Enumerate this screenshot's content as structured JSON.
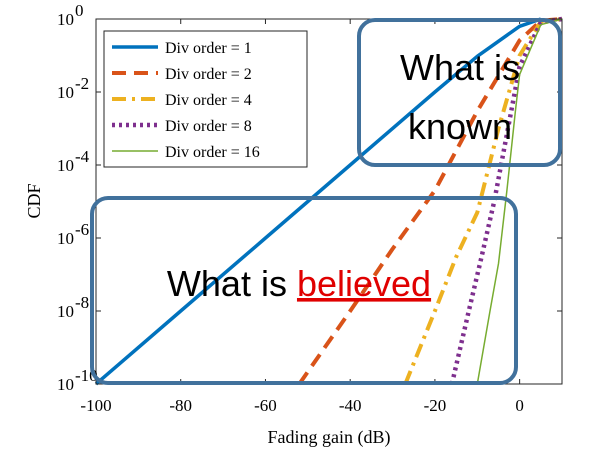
{
  "chart_data": {
    "type": "line",
    "xlabel": "Fading gain (dB)",
    "ylabel": "CDF",
    "xlim": [
      -100,
      10
    ],
    "ylim": [
      1e-10,
      1
    ],
    "yscale": "log",
    "x_ticks": [
      -100,
      -80,
      -60,
      -40,
      -20,
      0
    ],
    "y_ticks": [
      {
        "value": 1e-10,
        "base": "10",
        "exp": "-10"
      },
      {
        "value": 1e-08,
        "base": "10",
        "exp": "-8"
      },
      {
        "value": 1e-06,
        "base": "10",
        "exp": "-6"
      },
      {
        "value": 0.0001,
        "base": "10",
        "exp": "-4"
      },
      {
        "value": 0.01,
        "base": "10",
        "exp": "-2"
      },
      {
        "value": 1,
        "base": "10",
        "exp": "0"
      }
    ],
    "grid": false,
    "legend_position": "top-left",
    "series": [
      {
        "name": "Div order = 1",
        "color": "#0072BD",
        "dash": "solid",
        "width": 3.5,
        "x": [
          -100,
          -80,
          -60,
          -40,
          -20,
          -10,
          0,
          5
        ],
        "y": [
          1e-10,
          1e-08,
          1e-06,
          0.0001,
          0.01,
          0.095,
          0.63,
          1
        ]
      },
      {
        "name": "Div order = 2",
        "color": "#D95319",
        "dash": "dashed",
        "width": 4,
        "x": [
          -52,
          -40,
          -30,
          -20,
          -10,
          0,
          5,
          10
        ],
        "y": [
          1e-10,
          1e-08,
          5e-07,
          2e-05,
          0.003,
          0.26,
          0.9,
          1
        ]
      },
      {
        "name": "Div order = 4",
        "color": "#EDB120",
        "dash": "dashdot",
        "width": 4,
        "x": [
          -27,
          -20,
          -15,
          -10,
          -5,
          0,
          5,
          10
        ],
        "y": [
          1e-10,
          1e-08,
          3e-07,
          5e-06,
          0.001,
          0.1,
          0.85,
          1
        ]
      },
      {
        "name": "Div order = 8",
        "color": "#7E2F8E",
        "dash": "dotted",
        "width": 4.5,
        "x": [
          -16,
          -12,
          -9,
          -6,
          -3,
          0,
          5,
          10
        ],
        "y": [
          1e-10,
          1e-08,
          3e-07,
          1e-05,
          0.0007,
          0.05,
          0.8,
          1
        ]
      },
      {
        "name": "Div order = 16",
        "color": "#77AC30",
        "dash": "solid",
        "width": 1.5,
        "x": [
          -10,
          -7,
          -5,
          -3,
          -1,
          0,
          5,
          10
        ],
        "y": [
          1e-10,
          1e-08,
          2e-07,
          2e-05,
          0.003,
          0.03,
          0.7,
          1
        ]
      }
    ]
  },
  "annotations": {
    "known_line1": "What is",
    "known_line2": "known",
    "believed_prefix": "What is",
    "believed_word": "believed"
  }
}
